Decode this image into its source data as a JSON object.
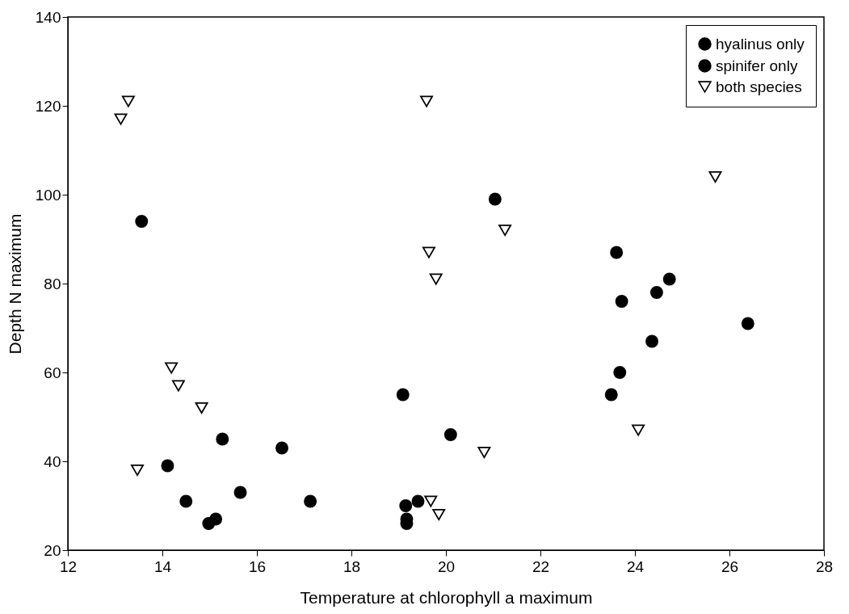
{
  "chart_data": {
    "type": "scatter",
    "xlabel": "Temperature at chlorophyll a maximum",
    "ylabel": "Depth N maximum",
    "xlim": [
      12,
      28
    ],
    "xticks": [
      12,
      14,
      16,
      18,
      20,
      22,
      24,
      26,
      28
    ],
    "ylim": [
      20,
      140
    ],
    "yticks": [
      20,
      40,
      60,
      80,
      100,
      120,
      140
    ],
    "grid": false,
    "legend": "top right",
    "series": [
      {
        "name": "hyalinus only",
        "color": "#000000",
        "marker": "circle",
        "x": [
          13.56,
          15.27,
          16.53,
          14.11,
          15.65,
          14.5,
          17.13,
          14.98,
          15.13,
          21.04,
          19.09,
          20.1,
          19.41,
          19.15,
          19.17,
          19.17
        ],
        "values": [
          94,
          45,
          43,
          39,
          33,
          31,
          31,
          26,
          27,
          99,
          55,
          46,
          31,
          30,
          27,
          26
        ]
      },
      {
        "name": "spinifer only",
        "color": "#000000",
        "marker": "circle",
        "x": [
          23.61,
          24.73,
          24.46,
          23.72,
          26.39,
          24.36,
          23.68,
          23.5
        ],
        "values": [
          87,
          81,
          78,
          76,
          71,
          67,
          60,
          55
        ]
      },
      {
        "name": "both species",
        "color": "#000000",
        "marker": "triangle",
        "x": [
          13.28,
          13.12,
          14.19,
          14.34,
          14.83,
          13.47,
          19.59,
          21.25,
          19.64,
          19.79,
          20.81,
          19.68,
          19.85,
          25.7,
          24.07
        ],
        "values": [
          121,
          117,
          61,
          57,
          52,
          38,
          121,
          92,
          87,
          81,
          42,
          31,
          28,
          104,
          47
        ]
      }
    ]
  }
}
